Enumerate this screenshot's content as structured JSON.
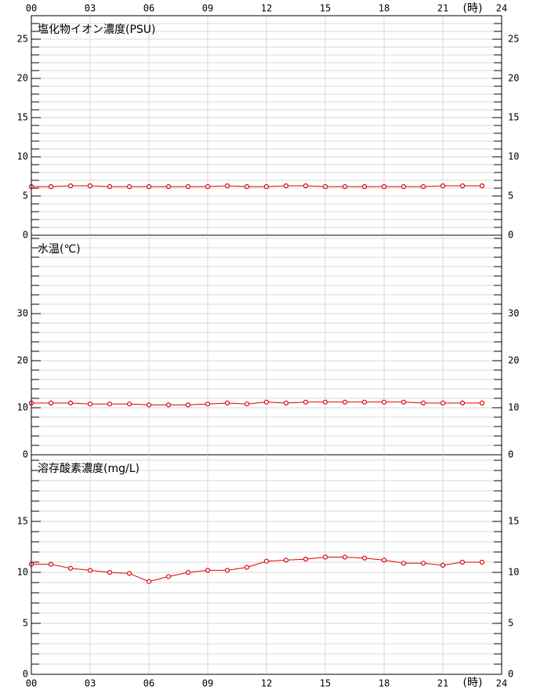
{
  "x_axis": {
    "xlim": [
      0,
      24
    ],
    "xticks": [
      {
        "value": 0,
        "label": "00"
      },
      {
        "value": 3,
        "label": "03"
      },
      {
        "value": 6,
        "label": "06"
      },
      {
        "value": 9,
        "label": "09"
      },
      12,
      15,
      18,
      21,
      24
    ],
    "unit_label": "(時)"
  },
  "chart_data": [
    {
      "type": "line",
      "title": "塩化物イオン濃度(PSU)",
      "color": "#e00000",
      "x": [
        0,
        1,
        2,
        3,
        4,
        5,
        6,
        7,
        8,
        9,
        10,
        11,
        12,
        13,
        14,
        15,
        16,
        17,
        18,
        19,
        20,
        21,
        22,
        23
      ],
      "values": [
        6.2,
        6.2,
        6.3,
        6.3,
        6.2,
        6.2,
        6.2,
        6.2,
        6.2,
        6.2,
        6.3,
        6.2,
        6.2,
        6.3,
        6.3,
        6.2,
        6.2,
        6.2,
        6.2,
        6.2,
        6.2,
        6.3,
        6.3,
        6.3
      ],
      "ylim": [
        0,
        28
      ],
      "yticks": [
        0,
        5,
        10,
        15,
        20,
        25
      ],
      "minor_step": 1
    },
    {
      "type": "line",
      "title": "水温(℃)",
      "color": "#e00000",
      "x": [
        0,
        1,
        2,
        3,
        4,
        5,
        6,
        7,
        8,
        9,
        10,
        11,
        12,
        13,
        14,
        15,
        16,
        17,
        18,
        19,
        20,
        21,
        22,
        23
      ],
      "values": [
        11.0,
        11.0,
        11.0,
        10.8,
        10.8,
        10.8,
        10.6,
        10.6,
        10.6,
        10.8,
        11.0,
        10.8,
        11.2,
        11.0,
        11.2,
        11.2,
        11.2,
        11.2,
        11.2,
        11.2,
        11.0,
        11.0,
        11.0,
        11.0
      ],
      "ylim": [
        0,
        46.67
      ],
      "yticks": [
        0,
        10,
        20,
        30
      ],
      "minor_step": 2
    },
    {
      "type": "line",
      "title": "溶存酸素濃度(mg/L)",
      "color": "#e00000",
      "x": [
        0,
        1,
        2,
        3,
        4,
        5,
        6,
        7,
        8,
        9,
        10,
        11,
        12,
        13,
        14,
        15,
        16,
        17,
        18,
        19,
        20,
        21,
        22,
        23
      ],
      "values": [
        10.8,
        10.8,
        10.4,
        10.2,
        10.0,
        9.9,
        9.1,
        9.6,
        10.0,
        10.2,
        10.2,
        10.5,
        11.1,
        11.2,
        11.3,
        11.5,
        11.5,
        11.4,
        11.2,
        10.9,
        10.9,
        10.7,
        11.0,
        11.0
      ],
      "ylim": [
        0,
        21.54
      ],
      "yticks": [
        0,
        5,
        10,
        15
      ],
      "minor_step": 1
    }
  ]
}
